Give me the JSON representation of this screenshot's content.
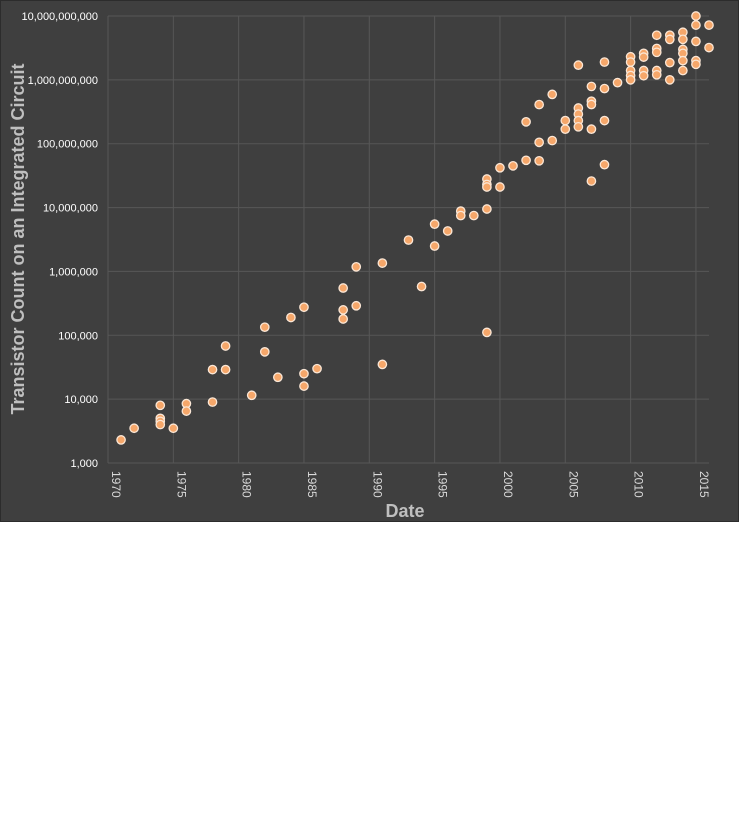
{
  "colors": {
    "background": "#3f3f3f",
    "grid": "#575757",
    "point": "#f6a76a",
    "text": "#d9d9d9"
  },
  "chart_data": {
    "type": "scatter",
    "xlabel": "Date",
    "ylabel": "Transistor Count on an Integrated Circuit",
    "xlim": [
      1970,
      2016
    ],
    "ylim": [
      1000,
      10000000000
    ],
    "y_scale": "log",
    "grid": true,
    "x_ticks": [
      1970,
      1975,
      1980,
      1985,
      1990,
      1995,
      2000,
      2005,
      2010,
      2015
    ],
    "x_tick_labels": [
      "1970",
      "1975",
      "1980",
      "1985",
      "1990",
      "1995",
      "2000",
      "2005",
      "2010",
      "2015"
    ],
    "y_ticks": [
      1000,
      10000,
      100000,
      1000000,
      10000000,
      100000000,
      1000000000,
      10000000000
    ],
    "y_tick_labels": [
      "1,000",
      "10,000",
      "100,000",
      "1,000,000",
      "10,000,000",
      "100,000,000",
      "1,000,000,000",
      "10,000,000,000"
    ],
    "points": [
      [
        1971,
        2300
      ],
      [
        1972,
        3500
      ],
      [
        1974,
        8000
      ],
      [
        1974,
        5000
      ],
      [
        1974,
        4500
      ],
      [
        1974,
        4000
      ],
      [
        1975,
        3500
      ],
      [
        1976,
        8500
      ],
      [
        1976,
        6500
      ],
      [
        1978,
        29000
      ],
      [
        1978,
        9000
      ],
      [
        1979,
        29000
      ],
      [
        1979,
        68000
      ],
      [
        1981,
        11500
      ],
      [
        1982,
        134000
      ],
      [
        1982,
        55000
      ],
      [
        1983,
        22000
      ],
      [
        1984,
        190000
      ],
      [
        1985,
        275000
      ],
      [
        1985,
        25000
      ],
      [
        1985,
        16000
      ],
      [
        1986,
        30000
      ],
      [
        1988,
        550000
      ],
      [
        1988,
        250000
      ],
      [
        1988,
        180000
      ],
      [
        1989,
        1180000
      ],
      [
        1989,
        290000
      ],
      [
        1991,
        1350000
      ],
      [
        1991,
        35000
      ],
      [
        1993,
        3100000
      ],
      [
        1994,
        580000
      ],
      [
        1995,
        5500000
      ],
      [
        1995,
        2500000
      ],
      [
        1996,
        4300000
      ],
      [
        1997,
        8800000
      ],
      [
        1997,
        7500000
      ],
      [
        1998,
        7500000
      ],
      [
        1999,
        28000000
      ],
      [
        1999,
        23000000
      ],
      [
        1999,
        21000000
      ],
      [
        1999,
        9500000
      ],
      [
        1999,
        111000
      ],
      [
        2000,
        42000000
      ],
      [
        2000,
        21000000
      ],
      [
        2001,
        45000000
      ],
      [
        2002,
        220000000
      ],
      [
        2002,
        55000000
      ],
      [
        2003,
        410000000
      ],
      [
        2003,
        105000000
      ],
      [
        2003,
        54000000
      ],
      [
        2004,
        592000000
      ],
      [
        2004,
        112000000
      ],
      [
        2005,
        230000000
      ],
      [
        2005,
        169000000
      ],
      [
        2006,
        1700000000
      ],
      [
        2006,
        362000000
      ],
      [
        2006,
        291000000
      ],
      [
        2006,
        230000000
      ],
      [
        2006,
        184000000
      ],
      [
        2007,
        789000000
      ],
      [
        2007,
        463000000
      ],
      [
        2007,
        411000000
      ],
      [
        2007,
        169000000
      ],
      [
        2007,
        26000000
      ],
      [
        2008,
        1900000000
      ],
      [
        2008,
        731000000
      ],
      [
        2008,
        230000000
      ],
      [
        2008,
        47000000
      ],
      [
        2009,
        904000000
      ],
      [
        2010,
        2300000000
      ],
      [
        2010,
        1900000000
      ],
      [
        2010,
        1400000000
      ],
      [
        2010,
        1170000000
      ],
      [
        2010,
        1000000000
      ],
      [
        2011,
        2600000000
      ],
      [
        2011,
        2270000000
      ],
      [
        2011,
        1400000000
      ],
      [
        2011,
        1160000000
      ],
      [
        2012,
        5000000000
      ],
      [
        2012,
        3100000000
      ],
      [
        2012,
        2700000000
      ],
      [
        2012,
        1400000000
      ],
      [
        2012,
        1200000000
      ],
      [
        2013,
        5000000000
      ],
      [
        2013,
        4300000000
      ],
      [
        2013,
        1860000000
      ],
      [
        2013,
        1000000000
      ],
      [
        2014,
        5560000000
      ],
      [
        2014,
        4310000000
      ],
      [
        2014,
        3000000000
      ],
      [
        2014,
        2600000000
      ],
      [
        2014,
        2000000000
      ],
      [
        2014,
        1400000000
      ],
      [
        2015,
        10000000000
      ],
      [
        2015,
        7200000000
      ],
      [
        2015,
        4000000000
      ],
      [
        2015,
        2000000000
      ],
      [
        2015,
        1750000000
      ],
      [
        2016,
        7200000000
      ],
      [
        2016,
        3200000000
      ]
    ]
  }
}
